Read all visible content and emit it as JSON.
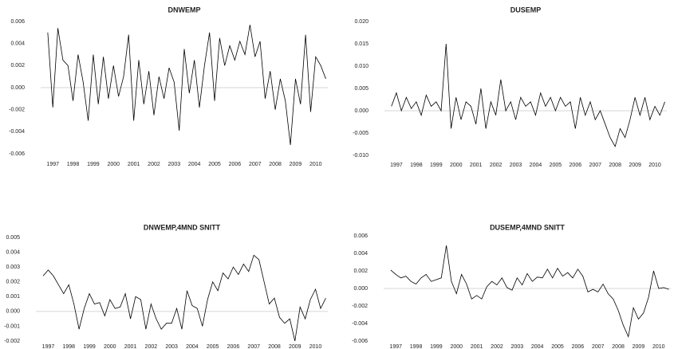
{
  "chart_data": [
    {
      "type": "line",
      "title": "DNWEMP",
      "color": "#000000",
      "zero_line": true,
      "x": [
        1996.75,
        1997.0,
        1997.25,
        1997.5,
        1997.75,
        1998.0,
        1998.25,
        1998.5,
        1998.75,
        1999.0,
        1999.25,
        1999.5,
        1999.75,
        2000.0,
        2000.25,
        2000.5,
        2000.75,
        2001.0,
        2001.25,
        2001.5,
        2001.75,
        2002.0,
        2002.25,
        2002.5,
        2002.75,
        2003.0,
        2003.25,
        2003.5,
        2003.75,
        2004.0,
        2004.25,
        2004.5,
        2004.75,
        2005.0,
        2005.25,
        2005.5,
        2005.75,
        2006.0,
        2006.25,
        2006.5,
        2006.75,
        2007.0,
        2007.25,
        2007.5,
        2007.75,
        2008.0,
        2008.25,
        2008.5,
        2008.75,
        2009.0,
        2009.25,
        2009.5,
        2009.75,
        2010.0,
        2010.25,
        2010.5
      ],
      "values": [
        0.005,
        -0.0018,
        0.0054,
        0.0025,
        0.002,
        -0.0012,
        0.003,
        0.0005,
        -0.003,
        0.003,
        -0.0015,
        0.0028,
        -0.001,
        0.002,
        -0.0008,
        0.001,
        0.0048,
        -0.003,
        0.0025,
        -0.0015,
        0.0015,
        -0.0025,
        0.001,
        -0.001,
        0.0018,
        0.0005,
        -0.0039,
        0.0035,
        -0.0005,
        0.0025,
        -0.0018,
        0.002,
        0.005,
        -0.0012,
        0.0045,
        0.002,
        0.0038,
        0.0025,
        0.0042,
        0.003,
        0.0057,
        0.0028,
        0.0042,
        -0.001,
        0.0015,
        -0.002,
        0.0008,
        -0.0012,
        -0.0052,
        0.0008,
        -0.0015,
        0.0048,
        -0.0022,
        0.0028,
        0.002,
        0.0008
      ],
      "xlim": [
        1996.4,
        2010.6
      ],
      "xticks": [
        1997,
        1998,
        1999,
        2000,
        2001,
        2002,
        2003,
        2004,
        2005,
        2006,
        2007,
        2008,
        2009,
        2010
      ],
      "ylim": [
        -0.006,
        0.006
      ],
      "yticks": [
        0.006,
        0.004,
        0.002,
        {
          "value": 0,
          "label": "0.000"
        },
        -0.002,
        -0.004,
        -0.006
      ]
    },
    {
      "type": "line",
      "title": "DUSEMP",
      "color": "#000000",
      "zero_line": true,
      "x": [
        1996.75,
        1997.0,
        1997.25,
        1997.5,
        1997.75,
        1998.0,
        1998.25,
        1998.5,
        1998.75,
        1999.0,
        1999.25,
        1999.5,
        1999.75,
        2000.0,
        2000.25,
        2000.5,
        2000.75,
        2001.0,
        2001.25,
        2001.5,
        2001.75,
        2002.0,
        2002.25,
        2002.5,
        2002.75,
        2003.0,
        2003.25,
        2003.5,
        2003.75,
        2004.0,
        2004.25,
        2004.5,
        2004.75,
        2005.0,
        2005.25,
        2005.5,
        2005.75,
        2006.0,
        2006.25,
        2006.5,
        2006.75,
        2007.0,
        2007.25,
        2007.5,
        2007.75,
        2008.0,
        2008.25,
        2008.5,
        2008.75,
        2009.0,
        2009.25,
        2009.5,
        2009.75,
        2010.0,
        2010.25,
        2010.5
      ],
      "values": [
        0.001,
        0.004,
        0.0,
        0.003,
        0.0005,
        0.002,
        -0.001,
        0.0035,
        0.001,
        0.002,
        0.0,
        0.015,
        -0.004,
        0.003,
        -0.002,
        0.002,
        0.001,
        -0.003,
        0.005,
        -0.004,
        0.002,
        -0.001,
        0.007,
        0.0,
        0.002,
        -0.002,
        0.003,
        0.001,
        0.002,
        -0.001,
        0.004,
        0.001,
        0.003,
        0.0,
        0.003,
        0.001,
        0.002,
        -0.004,
        0.003,
        -0.001,
        0.002,
        -0.002,
        0.0,
        -0.003,
        -0.006,
        -0.008,
        -0.004,
        -0.006,
        -0.002,
        0.003,
        -0.001,
        0.003,
        -0.002,
        0.001,
        -0.001,
        0.002
      ],
      "xlim": [
        1996.4,
        2010.6
      ],
      "xticks": [
        1997,
        1998,
        1999,
        2000,
        2001,
        2002,
        2003,
        2004,
        2005,
        2006,
        2007,
        2008,
        2009,
        2010
      ],
      "ylim": [
        -0.01,
        0.02
      ],
      "yticks": [
        {
          "value": 0.02,
          "label": "0.020"
        },
        0.015,
        {
          "value": 0.01,
          "label": "0.010"
        },
        0.005,
        {
          "value": 0,
          "label": "0.000"
        },
        -0.005,
        {
          "value": -0.01,
          "label": "-0.010"
        }
      ]
    },
    {
      "type": "line",
      "title": "DNWEMP,4MND SNITT",
      "color": "#000000",
      "zero_line": true,
      "x": [
        1996.75,
        1997.0,
        1997.25,
        1997.5,
        1997.75,
        1998.0,
        1998.25,
        1998.5,
        1998.75,
        1999.0,
        1999.25,
        1999.5,
        1999.75,
        2000.0,
        2000.25,
        2000.5,
        2000.75,
        2001.0,
        2001.25,
        2001.5,
        2001.75,
        2002.0,
        2002.25,
        2002.5,
        2002.75,
        2003.0,
        2003.25,
        2003.5,
        2003.75,
        2004.0,
        2004.25,
        2004.5,
        2004.75,
        2005.0,
        2005.25,
        2005.5,
        2005.75,
        2006.0,
        2006.25,
        2006.5,
        2006.75,
        2007.0,
        2007.25,
        2007.5,
        2007.75,
        2008.0,
        2008.25,
        2008.5,
        2008.75,
        2009.0,
        2009.25,
        2009.5,
        2009.75,
        2010.0,
        2010.25,
        2010.5
      ],
      "values": [
        0.0024,
        0.0028,
        0.0024,
        0.0018,
        0.0012,
        0.0018,
        0.0005,
        -0.0012,
        0.0002,
        0.0012,
        0.0005,
        0.0006,
        -0.0003,
        0.0008,
        0.0002,
        0.0003,
        0.0012,
        -0.0005,
        0.001,
        0.0008,
        -0.0012,
        0.0005,
        -0.0005,
        -0.0012,
        -0.0008,
        -0.0008,
        0.0002,
        -0.0012,
        0.0014,
        0.0004,
        0.0002,
        -0.001,
        0.0008,
        0.002,
        0.0014,
        0.0026,
        0.0022,
        0.003,
        0.0025,
        0.0032,
        0.0027,
        0.0038,
        0.0035,
        0.002,
        0.0005,
        0.0009,
        -0.0004,
        -0.0008,
        -0.0005,
        -0.002,
        0.0003,
        -0.0005,
        0.0008,
        0.0015,
        0.0002,
        0.0009
      ],
      "xlim": [
        1996.4,
        2010.6
      ],
      "xticks": [
        1997,
        1998,
        1999,
        2000,
        2001,
        2002,
        2003,
        2004,
        2005,
        2006,
        2007,
        2008,
        2009,
        2010
      ],
      "ylim": [
        -0.002,
        0.005
      ],
      "yticks": [
        0.005,
        0.004,
        0.003,
        0.002,
        0.001,
        {
          "value": 0,
          "label": "0.000"
        },
        -0.001,
        -0.002
      ]
    },
    {
      "type": "line",
      "title": "DUSEMP,4MND SNITT",
      "color": "#000000",
      "zero_line": true,
      "x": [
        1996.75,
        1997.0,
        1997.25,
        1997.5,
        1997.75,
        1998.0,
        1998.25,
        1998.5,
        1998.75,
        1999.0,
        1999.25,
        1999.5,
        1999.75,
        2000.0,
        2000.25,
        2000.5,
        2000.75,
        2001.0,
        2001.25,
        2001.5,
        2001.75,
        2002.0,
        2002.25,
        2002.5,
        2002.75,
        2003.0,
        2003.25,
        2003.5,
        2003.75,
        2004.0,
        2004.25,
        2004.5,
        2004.75,
        2005.0,
        2005.25,
        2005.5,
        2005.75,
        2006.0,
        2006.25,
        2006.5,
        2006.75,
        2007.0,
        2007.25,
        2007.5,
        2007.75,
        2008.0,
        2008.25,
        2008.5,
        2008.75,
        2009.0,
        2009.25,
        2009.5,
        2009.75,
        2010.0,
        2010.25,
        2010.5
      ],
      "values": [
        0.0021,
        0.0016,
        0.0012,
        0.0014,
        0.0008,
        0.0005,
        0.0012,
        0.0016,
        0.0008,
        0.001,
        0.0012,
        0.0049,
        0.0008,
        -0.0006,
        0.0016,
        0.0005,
        -0.0012,
        -0.0008,
        -0.0012,
        0.0002,
        0.0008,
        0.0004,
        0.0012,
        0.0001,
        -0.0002,
        0.0012,
        0.0004,
        0.0017,
        0.0008,
        0.0013,
        0.0012,
        0.0022,
        0.0012,
        0.0023,
        0.0014,
        0.0018,
        0.0012,
        0.0022,
        0.0014,
        -0.0004,
        -0.0001,
        -0.0004,
        0.0005,
        -0.0006,
        -0.0012,
        -0.0025,
        -0.0042,
        -0.0055,
        -0.0022,
        -0.0035,
        -0.0028,
        -0.001,
        0.002,
        0.0,
        0.0001,
        -0.0001
      ],
      "xlim": [
        1996.4,
        2010.6
      ],
      "xticks": [
        1997,
        1998,
        1999,
        2000,
        2001,
        2002,
        2003,
        2004,
        2005,
        2006,
        2007,
        2008,
        2009,
        2010
      ],
      "ylim": [
        -0.006,
        0.006
      ],
      "yticks": [
        0.006,
        0.004,
        0.002,
        {
          "value": 0,
          "label": "0.000"
        },
        -0.002,
        -0.004,
        -0.006
      ]
    }
  ]
}
